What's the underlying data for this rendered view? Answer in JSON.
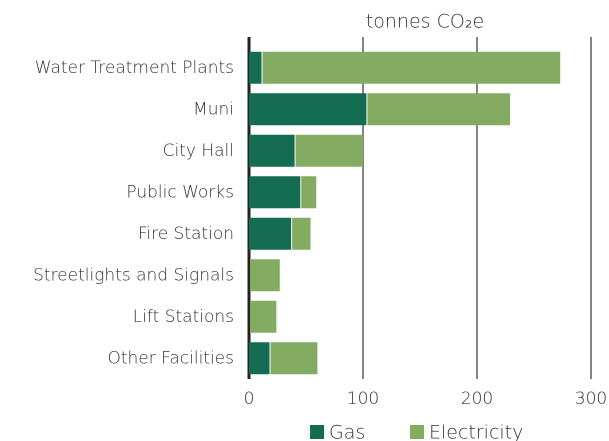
{
  "chart_data": {
    "type": "bar",
    "orientation": "horizontal",
    "stacked": true,
    "title": "tonnes CO₂e",
    "categories": [
      "Water Treatment Plants",
      "Muni",
      "City Hall",
      "Public Works",
      "Fire Station",
      "Streetlights and Signals",
      "Lift Stations",
      "Other Facilities"
    ],
    "series": [
      {
        "name": "Gas",
        "color": "#146c52",
        "values": [
          11,
          103,
          40,
          45,
          37,
          0,
          0,
          18
        ]
      },
      {
        "name": "Electricity",
        "color": "#83ac62",
        "values": [
          262,
          126,
          60,
          14,
          17,
          27,
          24,
          42
        ]
      }
    ],
    "xlim": [
      0,
      300
    ],
    "xticks": [
      0,
      100,
      200,
      300
    ],
    "grid": true,
    "legend": "bottom"
  }
}
